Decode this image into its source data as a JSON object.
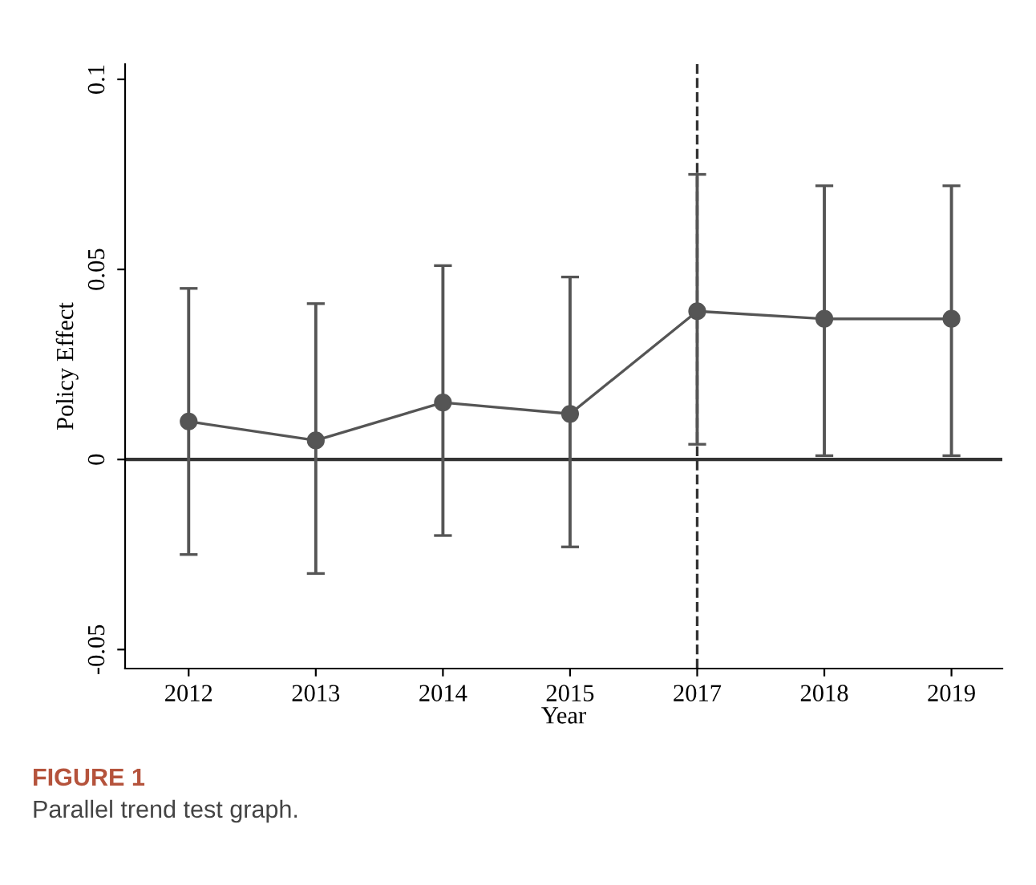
{
  "chart_data": {
    "type": "line",
    "xlabel": "Year",
    "ylabel": "Policy Effect",
    "categories": [
      "2012",
      "2013",
      "2014",
      "2015",
      "2017",
      "2018",
      "2019"
    ],
    "series": [
      {
        "color": "#555555",
        "values": [
          0.01,
          0.005,
          0.015,
          0.012,
          0.039,
          0.037,
          0.037
        ],
        "errors": [
          [
            -0.025,
            0.045
          ],
          [
            -0.03,
            0.041
          ],
          [
            -0.02,
            0.051
          ],
          [
            -0.023,
            0.048
          ],
          [
            0.004,
            0.075
          ],
          [
            0.001,
            0.072
          ],
          [
            0.001,
            0.072
          ]
        ]
      }
    ],
    "ylim": [
      -0.055,
      0.104
    ],
    "yticks": [
      -0.05,
      0,
      0.05,
      0.1
    ],
    "ref_lines": [
      {
        "axis": "y",
        "value": 0,
        "color": "#333333",
        "line_style": "solid"
      },
      {
        "axis": "x",
        "value": "2017",
        "color": "#333333",
        "line_style": "dashed"
      }
    ],
    "marker": "circle",
    "line_style": "solid",
    "grid": false,
    "legend": false,
    "annotations": [
      "FIGURE 1",
      "Parallel trend test graph."
    ]
  }
}
